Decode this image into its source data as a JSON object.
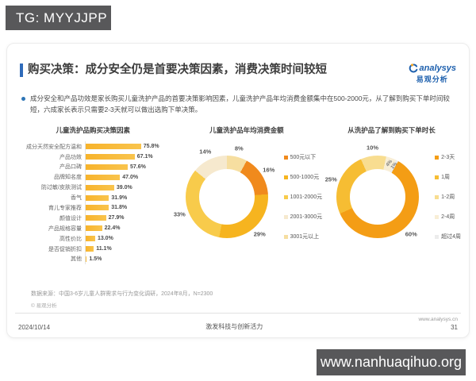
{
  "overlays": {
    "top_banner": "TG: MYYJJPP",
    "bottom_banner": "www.nanhuaqihuo.org"
  },
  "header": {
    "title": "购买决策：成分安全仍是首要决策因素，消费决策时间较短",
    "logo_brand": "analysys",
    "logo_cn": "易观分析"
  },
  "summary": {
    "bullet_text": "成分安全和产品功效是家长购买儿童洗护产品的首要决策影响因素，儿童洗护产品年均消费金额集中在500-2000元，从了解到购买下单时间较短，六成家长表示只需要2-3天就可以做出选购下单决策。"
  },
  "chart_data": [
    {
      "type": "bar",
      "orientation": "horizontal",
      "title": "儿童洗护品购买决策因素",
      "categories": [
        "成分天然安全配方温和",
        "产品功效",
        "产品口碑",
        "品牌知名度",
        "防过敏/皮肤测试",
        "香气",
        "育儿专家推荐",
        "颜值设计",
        "产品规格容量",
        "高性价比",
        "是否促销折扣",
        "其他"
      ],
      "values": [
        75.8,
        67.1,
        57.6,
        47.0,
        39.0,
        31.9,
        31.8,
        27.9,
        22.4,
        13.0,
        11.1,
        1.5
      ],
      "value_labels": [
        "75.8%",
        "67.1%",
        "57.6%",
        "47.0%",
        "39.0%",
        "31.9%",
        "31.8%",
        "27.9%",
        "22.4%",
        "13.0%",
        "11.1%",
        "1.5%"
      ],
      "bar_color": "#F7B32B",
      "xlim": [
        0,
        100
      ]
    },
    {
      "type": "pie",
      "subtype": "donut",
      "title": "儿童洗护品年均消费金额",
      "labels": [
        "500元以下",
        "500-1000元",
        "1001-2000元",
        "2001-3000元",
        "3001元以上"
      ],
      "values": [
        16,
        29,
        33,
        14,
        8
      ],
      "slice_labels": [
        "16%",
        "29%",
        "33%",
        "14%",
        "8%"
      ],
      "colors": [
        "#F08A1D",
        "#F6B41F",
        "#F8CB4B",
        "#F6E9CE",
        "#F6DEA0"
      ],
      "start_angle": 28.8,
      "legend_position": "right"
    },
    {
      "type": "pie",
      "subtype": "donut",
      "title": "从洗护品了解到购买下单时长",
      "labels": [
        "2-3天",
        "1周",
        "1-2周",
        "2-4周",
        "超过4周"
      ],
      "values": [
        60,
        25,
        10,
        4,
        1
      ],
      "slice_labels": [
        "60%",
        "25%",
        "10%",
        "4%",
        "1%"
      ],
      "colors": [
        "#F49D15",
        "#F6BD33",
        "#F8DD90",
        "#F8EED6",
        "#ECECEC"
      ],
      "start_angle": 30,
      "legend_position": "right"
    }
  ],
  "footer": {
    "source": "数据来源：中国3-6岁儿童人群需求与行为变化调研，2024年8月，N=2300",
    "copyright": "© 易观分析",
    "date": "2024/10/14",
    "slogan": "激发科技与创新活力",
    "website": "www.analysys.cn",
    "page_number": "31"
  },
  "colors": {
    "accent_blue": "#2F6BBA",
    "logo_blue": "#1C5FAD",
    "banner_gray": "#58585A",
    "bar_amber": "#F7B32B"
  }
}
